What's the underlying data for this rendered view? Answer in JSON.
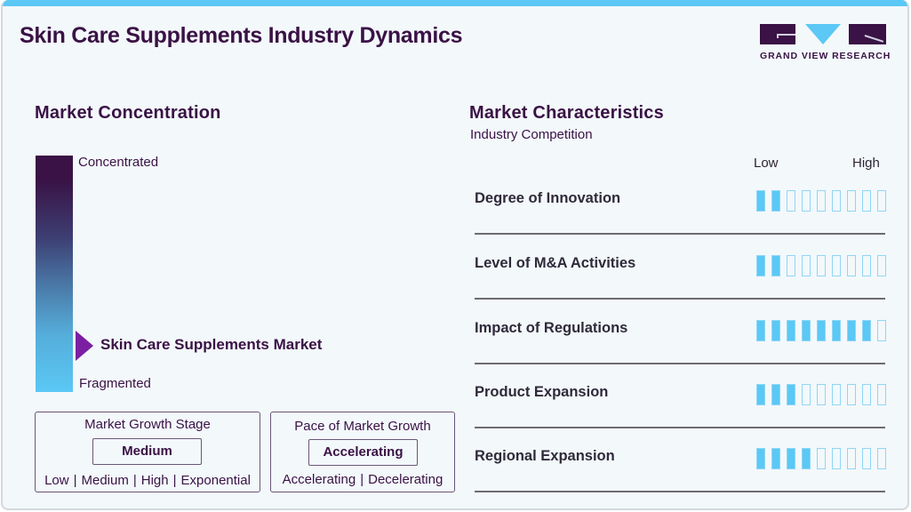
{
  "header": {
    "title": "Skin Care Supplements Industry Dynamics",
    "logo_text": "GRAND VIEW RESEARCH"
  },
  "colors": {
    "brand_dark": "#3a1245",
    "accent_blue": "#5bc8f5",
    "marker_purple": "#7a1fa2",
    "background": "#f3f8fb"
  },
  "market_concentration": {
    "title": "Market Concentration",
    "top_label": "Concentrated",
    "bottom_label": "Fragmented",
    "marker_label": "Skin Care Supplements Market",
    "marker_position_from_top_pct": 80
  },
  "growth_stage": {
    "title": "Market Growth Stage",
    "selected": "Medium",
    "options": [
      "Low",
      "Medium",
      "High",
      "Exponential"
    ]
  },
  "growth_pace": {
    "title": "Pace of Market Growth",
    "selected": "Accelerating",
    "options": [
      "Accelerating",
      "Decelerating"
    ]
  },
  "market_characteristics": {
    "title": "Market Characteristics",
    "subtitle": "Industry Competition",
    "scale_low": "Low",
    "scale_high": "High",
    "max_level": 9,
    "items": [
      {
        "name": "Degree of Innovation",
        "level": 2
      },
      {
        "name": "Level of M&A Activities",
        "level": 2
      },
      {
        "name": "Impact of Regulations",
        "level": 8
      },
      {
        "name": "Product Expansion",
        "level": 3
      },
      {
        "name": "Regional Expansion",
        "level": 4
      }
    ]
  },
  "chart_data": {
    "type": "table",
    "title": "Skin Care Supplements Industry Dynamics",
    "market_concentration": "Fragmented (near fragmented end)",
    "market_growth_stage": "Medium",
    "pace_of_market_growth": "Accelerating",
    "scale": {
      "min": 0,
      "max": 9,
      "low_label": "Low",
      "high_label": "High"
    },
    "categories": [
      "Degree of Innovation",
      "Level of M&A Activities",
      "Impact of Regulations",
      "Product Expansion",
      "Regional Expansion"
    ],
    "values": [
      2,
      2,
      8,
      3,
      4
    ]
  }
}
